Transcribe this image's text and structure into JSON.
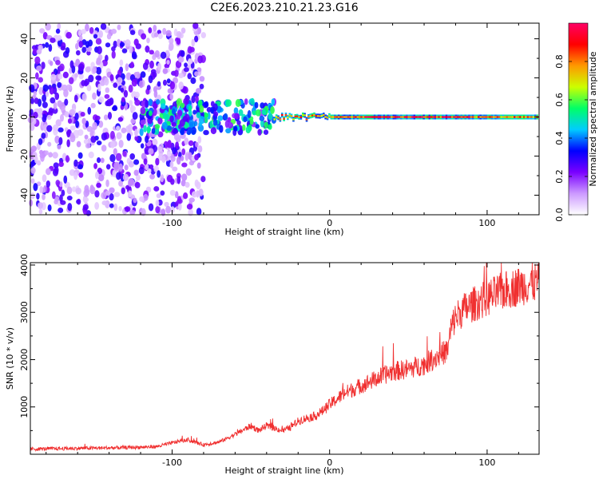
{
  "title": "C2E6.2023.210.21.23.G16",
  "chart_data": [
    {
      "type": "heatmap",
      "xlabel": "Height of straight line (km)",
      "ylabel": "Frequency (Hz)",
      "xlim": [
        -190,
        133
      ],
      "ylim": [
        -50,
        48
      ],
      "xticks": [
        -100,
        0,
        100
      ],
      "yticks": [
        -40,
        -20,
        0,
        20,
        40
      ],
      "colorbar": {
        "label": "Normalized spectral amplitude",
        "range": [
          0,
          1
        ],
        "ticks": [
          0.0,
          0.2,
          0.4,
          0.6,
          0.8
        ],
        "colormap": [
          "#ffffff",
          "#cc99ff",
          "#7a00ff",
          "#0000ff",
          "#00ccff",
          "#00ff66",
          "#ccff00",
          "#ff9900",
          "#ff0000",
          "#ff0066"
        ]
      },
      "description_regions": [
        {
          "x_range": [
            -190,
            -80
          ],
          "y_range": [
            -50,
            48
          ],
          "amplitude": 0.1,
          "pattern": "scattered purple speckle"
        },
        {
          "x_range": [
            -120,
            -35
          ],
          "y_range": [
            -8,
            8
          ],
          "amplitude": 0.3,
          "pattern": "blue/cyan blobs around 0 Hz"
        },
        {
          "x_range": [
            -35,
            133
          ],
          "y_range": [
            -2,
            2
          ],
          "amplitude": 0.9,
          "pattern": "narrow red/green band at 0 Hz"
        }
      ]
    },
    {
      "type": "line",
      "xlabel": "Height of straight line (km)",
      "ylabel": "SNR (10 * v/v)",
      "xlim": [
        -190,
        133
      ],
      "ylim": [
        0,
        4050
      ],
      "xticks": [
        -100,
        0,
        100
      ],
      "yticks": [
        1000,
        2000,
        3000,
        4000
      ],
      "color": "#f03030",
      "series": [
        {
          "x": [
            -190,
            -170,
            -150,
            -130,
            -110,
            -95,
            -90,
            -80,
            -75,
            -70,
            -60,
            -50,
            -45,
            -40,
            -35,
            -30,
            -25,
            -20,
            -15,
            -10,
            -5,
            0,
            10,
            20,
            30,
            40,
            50,
            60,
            70,
            75,
            77,
            80,
            85,
            90,
            100,
            110,
            120,
            133
          ],
          "y": [
            110,
            120,
            130,
            140,
            160,
            280,
            300,
            200,
            230,
            260,
            420,
            600,
            500,
            600,
            550,
            500,
            560,
            700,
            760,
            800,
            900,
            1050,
            1300,
            1450,
            1600,
            1750,
            1800,
            1900,
            2100,
            2200,
            2650,
            2900,
            3050,
            3150,
            3300,
            3450,
            3550,
            3650
          ]
        }
      ]
    }
  ]
}
